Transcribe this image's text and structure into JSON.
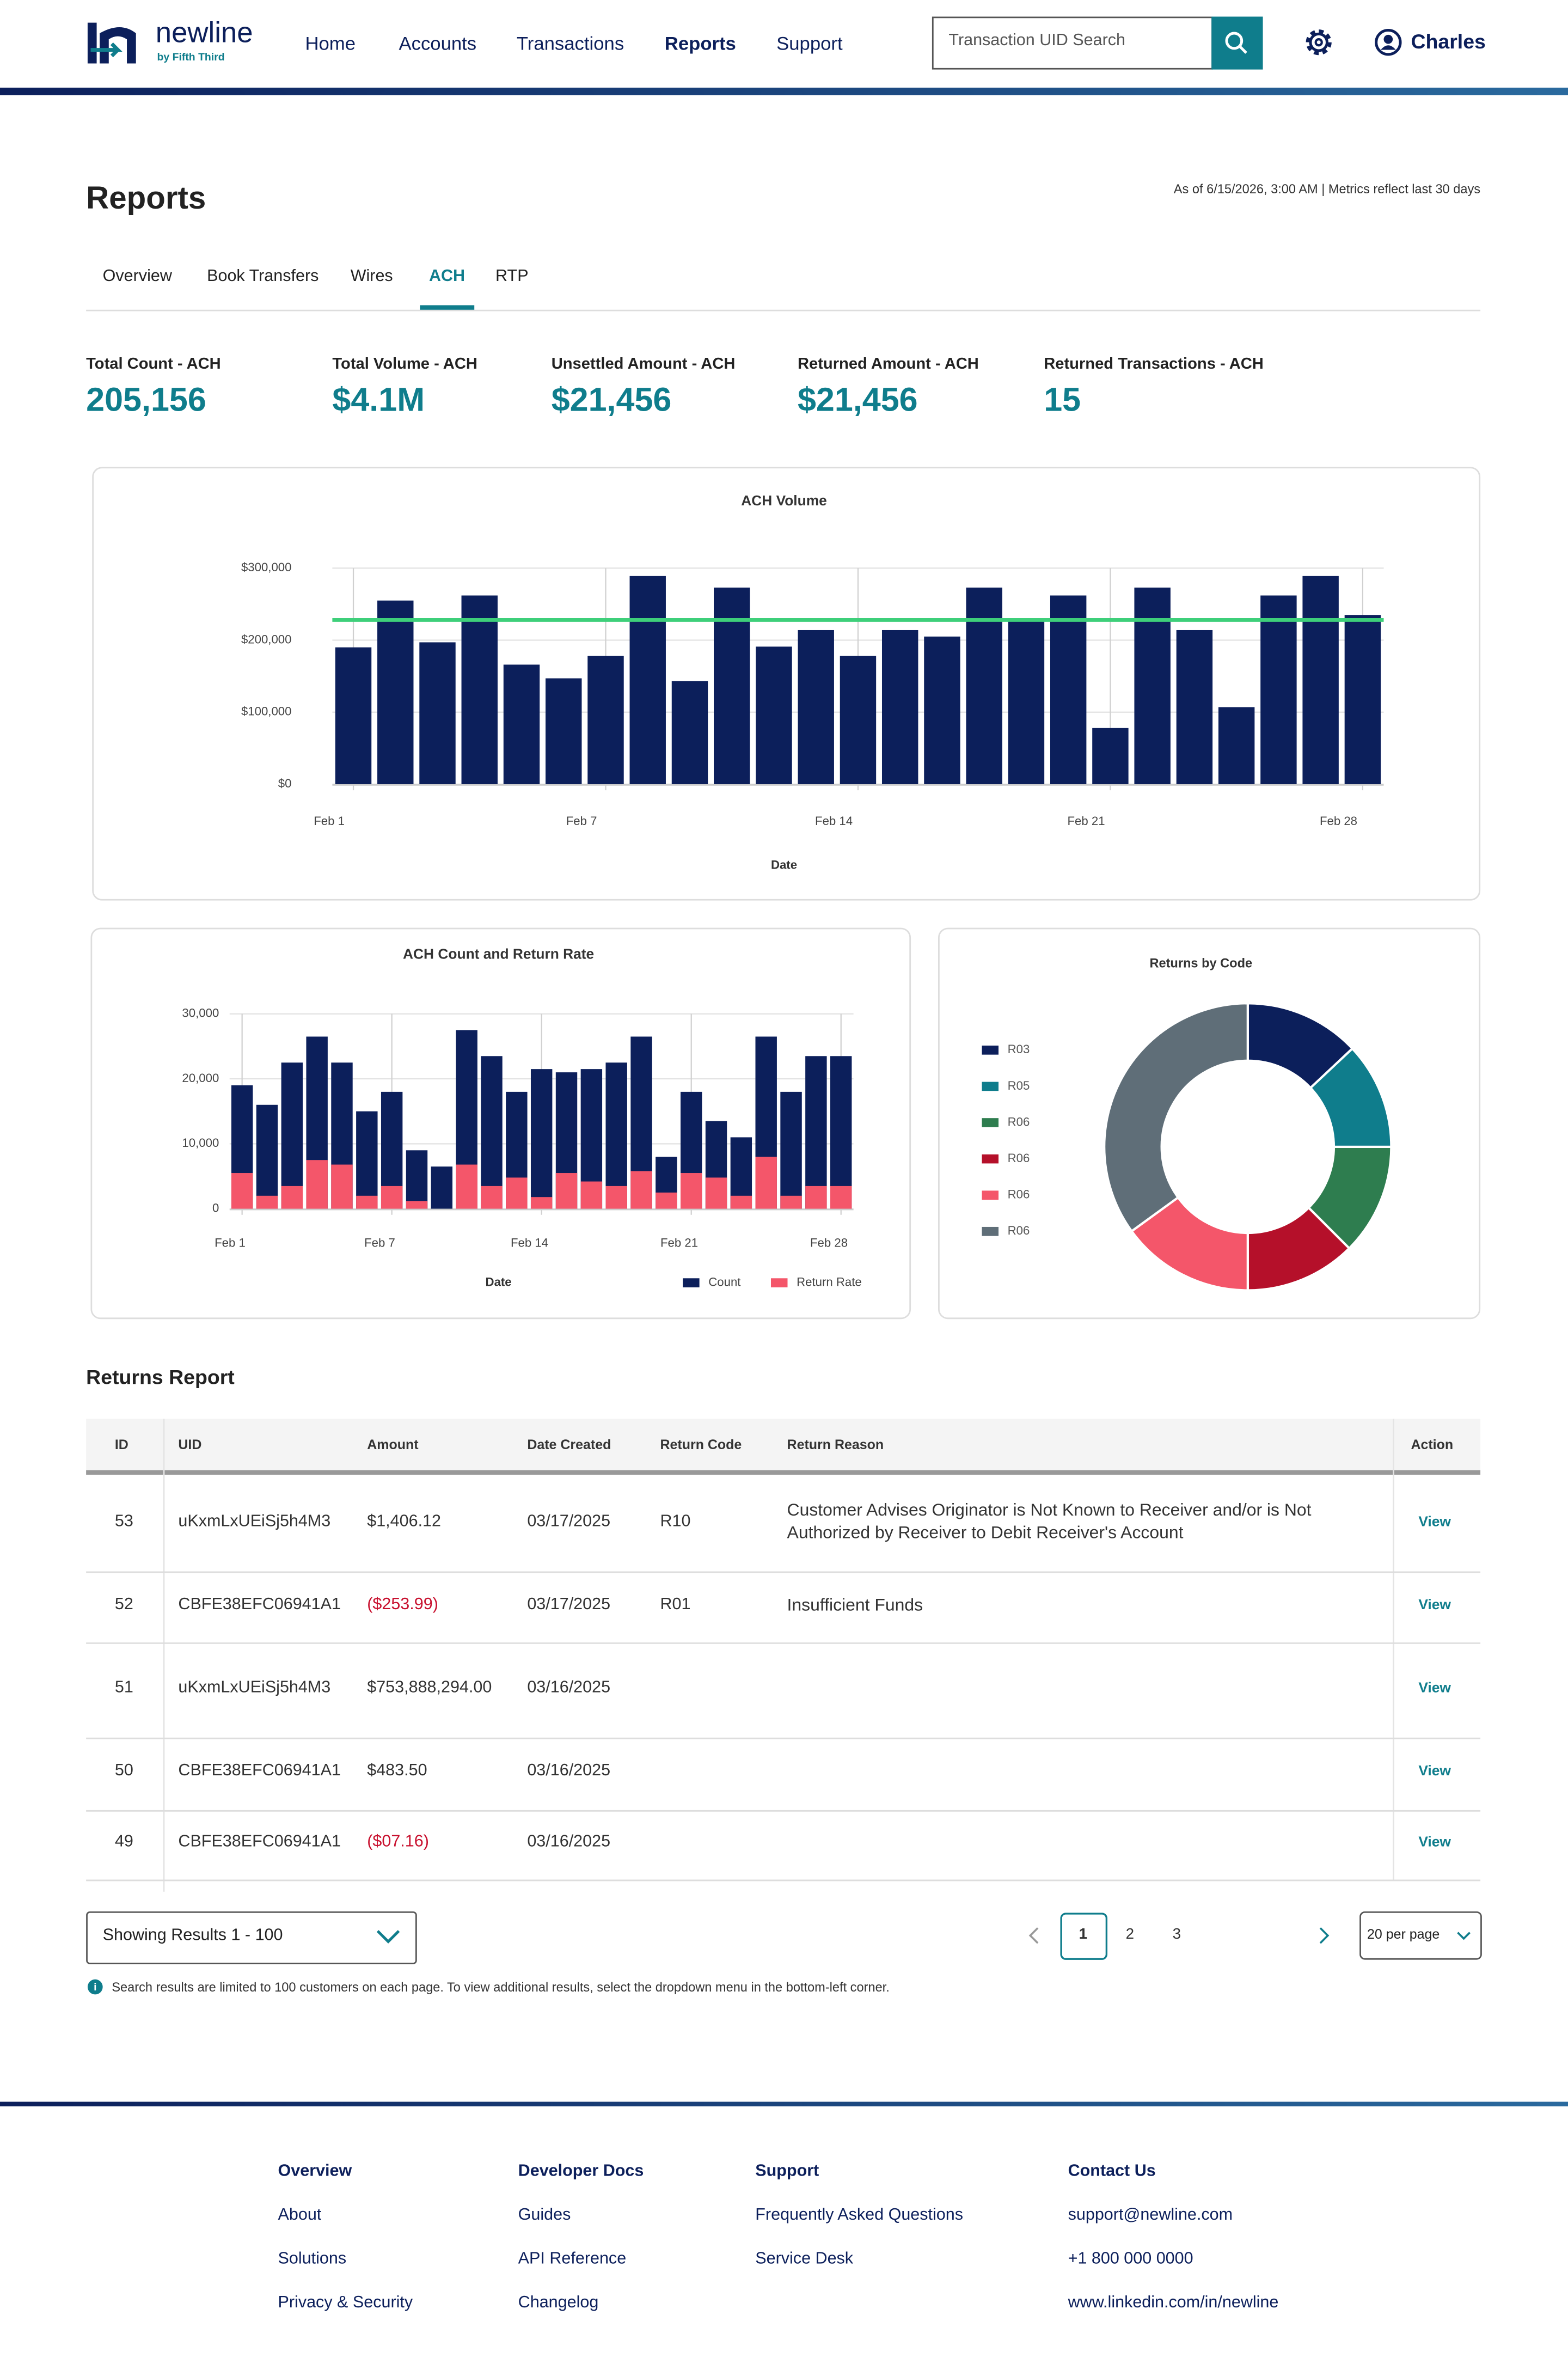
{
  "header": {
    "logo": "newline",
    "logo_sub": "by Fifth Third",
    "nav": [
      "Home",
      "Accounts",
      "Transactions",
      "Reports",
      "Support"
    ],
    "active_nav": 3,
    "search_placeholder": "Transaction UID Search",
    "user": "Charles"
  },
  "page": {
    "title": "Reports",
    "meta": "As of 6/15/2026, 3:00 AM | Metrics reflect last 30 days",
    "tabs": [
      "Overview",
      "Book Transfers",
      "Wires",
      "ACH",
      "RTP"
    ],
    "active_tab": 3
  },
  "metrics": [
    {
      "label": "Total Count - ACH",
      "value": "205,156"
    },
    {
      "label": "Total Volume - ACH",
      "value": "$4.1M"
    },
    {
      "label": "Unsettled Amount - ACH",
      "value": "$21,456"
    },
    {
      "label": "Returned Amount - ACH",
      "value": "$21,456"
    },
    {
      "label": "Returned Transactions - ACH",
      "value": "15"
    }
  ],
  "chart_data": [
    {
      "type": "bar",
      "title": "ACH Volume",
      "xlabel": "Date",
      "categories": [
        "Feb 1",
        null,
        null,
        null,
        null,
        null,
        "Feb 7",
        null,
        null,
        null,
        null,
        null,
        "Feb 14",
        null,
        null,
        null,
        null,
        null,
        "Feb 21",
        null,
        null,
        null,
        null,
        null,
        "Feb 28"
      ],
      "values": [
        190000,
        255000,
        197000,
        262000,
        166000,
        147000,
        178000,
        289000,
        143000,
        273000,
        191000,
        214000,
        178000,
        214000,
        205000,
        273000,
        228000,
        262000,
        78000,
        273000,
        214000,
        107000,
        262000,
        289000,
        235000
      ],
      "color": "#0c1f5b",
      "reference_line": {
        "value": 228000,
        "color": "#3ecf7a"
      },
      "ylim": [
        0,
        300000
      ],
      "yticks": [
        {
          "value": 0,
          "label": "$0"
        },
        {
          "value": 100000,
          "label": "$100,000"
        },
        {
          "value": 200000,
          "label": "$200,000"
        },
        {
          "value": 300000,
          "label": "$300,000"
        }
      ],
      "grid": true
    },
    {
      "type": "bar",
      "title": "ACH Count and Return Rate",
      "xlabel": "Date",
      "categories": [
        "Feb 1",
        null,
        null,
        null,
        null,
        null,
        "Feb 7",
        null,
        null,
        null,
        null,
        null,
        "Feb 14",
        null,
        null,
        null,
        null,
        null,
        "Feb 21",
        null,
        null,
        null,
        null,
        null,
        "Feb 28"
      ],
      "series": [
        {
          "name": "Count",
          "color": "#0c1f5b",
          "values": [
            19000,
            16000,
            22500,
            26500,
            22500,
            15000,
            18000,
            9000,
            6500,
            27500,
            23500,
            18000,
            21500,
            21000,
            21500,
            22500,
            26500,
            8000,
            18000,
            13500,
            11000,
            26500,
            18000,
            23500,
            23500
          ]
        },
        {
          "name": "Return Rate",
          "color": "#f4566a",
          "values": [
            5500,
            2000,
            3500,
            7500,
            6800,
            2000,
            3500,
            1200,
            0,
            6800,
            3500,
            4800,
            1800,
            5500,
            4200,
            3500,
            5800,
            2500,
            5500,
            4800,
            2000,
            8000,
            2000,
            3500,
            3500
          ]
        }
      ],
      "ylim": [
        0,
        30000
      ],
      "yticks": [
        0,
        {
          "value": 10000,
          "label": "10,000"
        },
        {
          "value": 20000,
          "label": "20,000"
        },
        {
          "value": 30000,
          "label": "30,000"
        }
      ],
      "grid": true,
      "legend": "bottom-right"
    },
    {
      "type": "pie",
      "title": "Returns by Code",
      "categories": [
        "R03",
        "R05",
        "R06",
        "R06",
        "R06",
        "R06"
      ],
      "values": [
        13,
        12,
        12.5,
        12.5,
        15,
        35
      ],
      "colors": [
        "#0c1f5b",
        "#0f7d8c",
        "#2e7d4f",
        "#b5102a",
        "#f4566a",
        "#5f6e78"
      ],
      "donut": true,
      "legend": "left"
    }
  ],
  "returns": {
    "title": "Returns Report",
    "columns": [
      "ID",
      "UID",
      "Amount",
      "Date Created",
      "Return Code",
      "Return Reason",
      "Action"
    ],
    "rows": [
      {
        "id": "53",
        "uid": "uKxmLxUEiSj5h4M3",
        "amount": "$1,406.12",
        "date": "03/17/2025",
        "code": "R10",
        "reason": "Customer Advises Originator is Not Known to Receiver and/or is Not Authorized by Receiver to Debit Receiver's Account",
        "action": "View"
      },
      {
        "id": "52",
        "uid": "CBFE38EFC06941A1",
        "amount": "($253.99)",
        "date": "03/17/2025",
        "code": "R01",
        "reason": "Insufficient Funds",
        "action": "View"
      },
      {
        "id": "51",
        "uid": "uKxmLxUEiSj5h4M3",
        "amount": "$753,888,294.00",
        "date": "03/16/2025",
        "action": "View"
      },
      {
        "id": "50",
        "uid": "CBFE38EFC06941A1",
        "amount": "$483.50",
        "date": "03/16/2025",
        "action": "View"
      },
      {
        "id": "49",
        "uid": "CBFE38EFC06941A1",
        "amount": "($07.16)",
        "date": "03/16/2025",
        "action": "View"
      }
    ]
  },
  "pagination": {
    "showing": "Showing Results 1 - 100",
    "pages": [
      "1",
      "2",
      "3"
    ],
    "current": 0,
    "per_page": "20 per page",
    "note": "Search results are limited to 100 customers on each page. To view additional results, select the dropdown menu in the bottom-left corner."
  },
  "footer": [
    {
      "heading": "Overview",
      "links": [
        "About",
        "Solutions",
        "Privacy & Security"
      ]
    },
    {
      "heading": "Developer Docs",
      "links": [
        "Guides",
        "API Reference",
        "Changelog"
      ]
    },
    {
      "heading": "Support",
      "links": [
        "Frequently Asked Questions",
        "Service Desk"
      ]
    },
    {
      "heading": "Contact Us",
      "links": [
        "support@newline.com",
        "+1 800 000 0000",
        "www.linkedin.com/in/newline"
      ]
    }
  ]
}
